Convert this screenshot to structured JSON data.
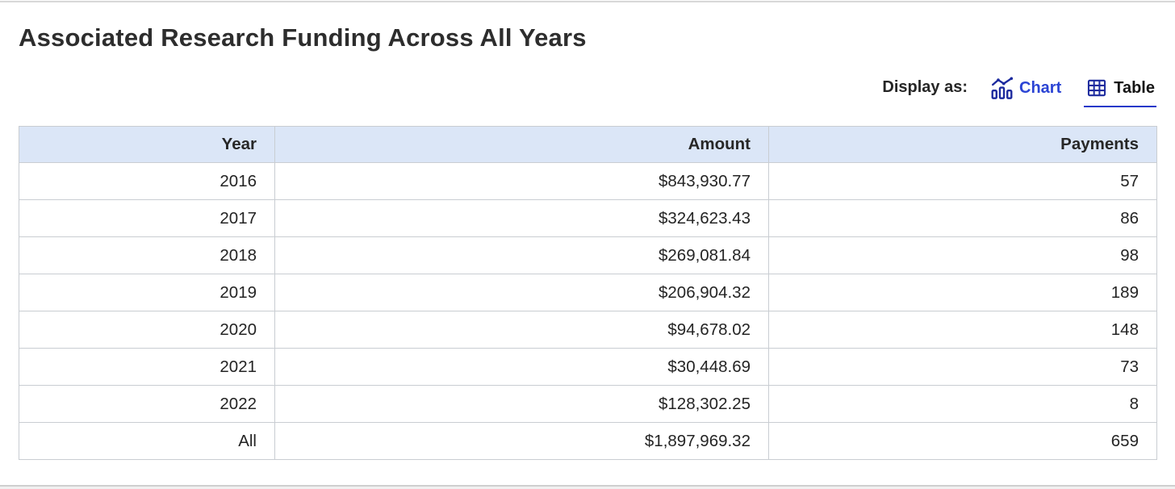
{
  "page": {
    "title": "Associated Research Funding Across All Years"
  },
  "toolbar": {
    "display_as_label": "Display as:",
    "chart_label": "Chart",
    "table_label": "Table",
    "active_view": "Table"
  },
  "table": {
    "columns": [
      "Year",
      "Amount",
      "Payments"
    ],
    "rows": [
      [
        "2016",
        "$843,930.77",
        "57"
      ],
      [
        "2017",
        "$324,623.43",
        "86"
      ],
      [
        "2018",
        "$269,081.84",
        "98"
      ],
      [
        "2019",
        "$206,904.32",
        "189"
      ],
      [
        "2020",
        "$94,678.02",
        "148"
      ],
      [
        "2021",
        "$30,448.69",
        "73"
      ],
      [
        "2022",
        "$128,302.25",
        "8"
      ],
      [
        "All",
        "$1,897,969.32",
        "659"
      ]
    ]
  },
  "colors": {
    "accent_blue": "#2338c9",
    "chart_link_blue": "#2b44d4",
    "icon_navy": "#1c2a9e",
    "header_bg": "#dbe6f7",
    "table_border": "#c9cdd2",
    "text": "#2b2b2b"
  }
}
